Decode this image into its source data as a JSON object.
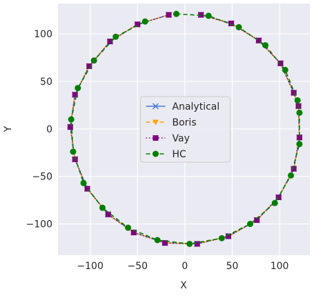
{
  "chart_data": {
    "type": "line",
    "x_label": "X",
    "y_label": "Y",
    "xlim": [
      -134,
      132
    ],
    "ylim": [
      -133,
      132
    ],
    "xticks": [
      {
        "value": -100,
        "label": "−100"
      },
      {
        "value": -50,
        "label": "−50"
      },
      0,
      50,
      100
    ],
    "yticks": [
      {
        "value": -100,
        "label": "−100"
      },
      {
        "value": -50,
        "label": "−50"
      },
      0,
      50,
      100
    ],
    "grid": true,
    "legend": "center",
    "series": [
      {
        "name": "Analytical",
        "color": "#4878d0",
        "dash": "",
        "marker": "x",
        "x": [
          17,
          49,
          78,
          101,
          115,
          120,
          121,
          115,
          99,
          76,
          46,
          13,
          -21,
          -54,
          -81,
          -103,
          -116,
          -121,
          -116,
          -101,
          -79,
          -50,
          -17
        ],
        "values": [
          120,
          111,
          93,
          69,
          38,
          24,
          -9,
          -42,
          -72,
          -96,
          -113,
          -121,
          -120,
          -109,
          -90,
          -63,
          -32,
          2,
          36,
          66,
          92,
          110,
          120
        ]
      },
      {
        "name": "Boris",
        "color": "#ffa500",
        "dash": "6,4",
        "marker": "v",
        "x": [
          17,
          49,
          78,
          101,
          115,
          120,
          121,
          115,
          99,
          76,
          46,
          13,
          -21,
          -54,
          -81,
          -103,
          -116,
          -121,
          -116,
          -101,
          -79,
          -50,
          -17
        ],
        "values": [
          120,
          111,
          93,
          69,
          38,
          24,
          -9,
          -42,
          -72,
          -96,
          -113,
          -121,
          -120,
          -109,
          -90,
          -63,
          -32,
          2,
          36,
          66,
          92,
          110,
          120
        ]
      },
      {
        "name": "Vay",
        "color": "#800080",
        "dash": "1.5,3",
        "marker": "s",
        "x": [
          17,
          49,
          78,
          101,
          115,
          120,
          121,
          115,
          99,
          76,
          46,
          13,
          -21,
          -54,
          -81,
          -103,
          -116,
          -121,
          -116,
          -101,
          -79,
          -50,
          -17
        ],
        "values": [
          120,
          111,
          93,
          69,
          38,
          24,
          -9,
          -42,
          -72,
          -96,
          -113,
          -121,
          -120,
          -109,
          -90,
          -63,
          -32,
          2,
          36,
          66,
          92,
          110,
          120
        ]
      },
      {
        "name": "HC",
        "color": "#008000",
        "dash": "6,4",
        "marker": "o",
        "x": [
          -9,
          25,
          57,
          85,
          106,
          119,
          121,
          121,
          112,
          95,
          69,
          39,
          5,
          -29,
          -60,
          -87,
          -107,
          -118,
          -120,
          -113,
          -96,
          -73,
          -42
        ],
        "values": [
          121,
          119,
          107,
          88,
          62,
          30,
          17,
          -16,
          -49,
          -78,
          -100,
          -115,
          -121,
          -117,
          -104,
          -83,
          -57,
          -24,
          10,
          43,
          72,
          97,
          113
        ]
      }
    ]
  }
}
